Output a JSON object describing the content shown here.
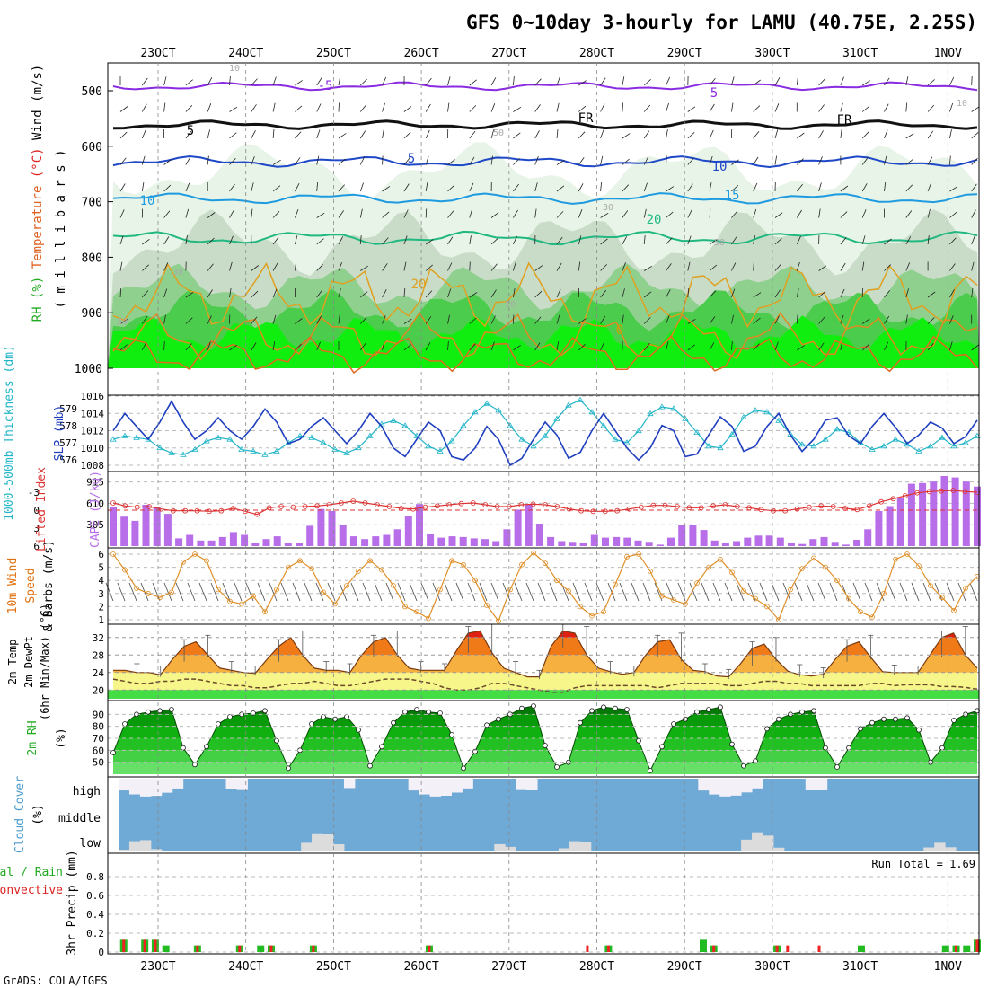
{
  "title": "GFS 0~10day 3-hourly for LAMU (40.75E, 2.25S)",
  "credit": "GrADS: COLA/IGES",
  "date_labels": [
    "23OCT",
    "24OCT",
    "25OCT",
    "26OCT",
    "27OCT",
    "28OCT",
    "29OCT",
    "30OCT",
    "31OCT",
    "1NOV"
  ],
  "panels": {
    "upper": {
      "ylabel_parts": [
        {
          "text": "RH (%)",
          "color": "#22aa22"
        },
        {
          "text": "Temperature",
          "color": "#e06020"
        },
        {
          "text": "(°C)",
          "color": "#dd2222"
        },
        {
          "text": "Wind (m/s)",
          "color": "#000000"
        }
      ],
      "ylabel2": "( m i l l i b a r s )",
      "yticks": [
        500,
        600,
        700,
        800,
        900,
        1000
      ],
      "contour_labels": [
        "-5",
        "5",
        "FR",
        "FR",
        "5",
        "5",
        "10",
        "10",
        "15",
        "20",
        "20",
        "0",
        "30",
        "10",
        "50",
        "10",
        "30",
        "50",
        "10",
        "30"
      ]
    },
    "thickness": {
      "ylabel_left": "1000-500mb Thickness (dm)",
      "ylabel_right": "SLP (mb)",
      "yticks_left": [
        576,
        577,
        578,
        579
      ],
      "yticks_right": [
        1008,
        1010,
        1012,
        1014,
        1016
      ],
      "colors": {
        "slp": "#1f3fbf",
        "thickness": "#22b5c8"
      }
    },
    "cape": {
      "ylabel_left": "Lifted Index",
      "ylabel_right": "CAPE (J/kg)",
      "yticks_left": [
        "-3",
        "0",
        "3",
        "6"
      ],
      "yticks_right": [
        "915",
        "610",
        "305"
      ],
      "colors": {
        "bar": "#b76ee8",
        "li": "#dd3333"
      }
    },
    "wind": {
      "ylabel_parts": [
        {
          "text": "10m Wind",
          "color": "#e07010"
        },
        {
          "text": "Speed",
          "color": "#e07010"
        },
        {
          "text": "& Barbs (m/s)",
          "color": "#000000"
        }
      ],
      "yticks": [
        1,
        2,
        3,
        4,
        5,
        6
      ],
      "color": "#e0902a"
    },
    "temp": {
      "ylabel_lines": [
        "2m Temp",
        "2m DewPt",
        "(6hr Min/Max) (°C)"
      ],
      "yticks": [
        20,
        24,
        28,
        32
      ]
    },
    "rh": {
      "ylabel_lines": [
        "2m RH",
        "(%)"
      ],
      "yticks": [
        50,
        60,
        70,
        80,
        90
      ]
    },
    "cloud": {
      "ylabel_lines": [
        "Cloud Cover",
        "(%)"
      ],
      "levels": [
        "high",
        "middle",
        "low"
      ],
      "colors": {
        "sky": "#6fa9d6",
        "cloud": "#dcdcdc",
        "bright": "#f4f0f8"
      }
    },
    "precip": {
      "ylabel_left_lines": [
        {
          "text": "Total / Rain",
          "color": "#22aa22"
        },
        {
          "text": "Convective",
          "color": "#dd2222"
        }
      ],
      "ylabel": "3hr Precip (mm)",
      "yticks": [
        "0",
        "0.2",
        "0.4",
        "0.6",
        "0.8"
      ],
      "run_total": "Run Total = 1.69"
    }
  },
  "chart_data": [
    {
      "type": "line",
      "title": "1000-500mb Thickness / SLP",
      "series": [
        {
          "name": "SLP (mb)",
          "values": [
            1012,
            1014,
            1012.5,
            1011,
            1013,
            1015.4,
            1013,
            1011,
            1012,
            1013.5,
            1012,
            1011,
            1012.5,
            1014.5,
            1013,
            1010.5,
            1011,
            1012.5,
            1013.5,
            1012,
            1010.5,
            1012,
            1014,
            1012.5,
            1010,
            1009,
            1011,
            1013,
            1012,
            1009,
            1008.6,
            1010,
            1012.5,
            1011,
            1008,
            1008.8,
            1011,
            1013,
            1011.5,
            1008.8,
            1009.5,
            1012,
            1014,
            1012,
            1010,
            1008.6,
            1010,
            1012.6,
            1012,
            1009,
            1009.3,
            1011.5,
            1013.6,
            1012.5,
            1009.6,
            1010.2,
            1012.5,
            1014,
            1011.5,
            1009.6,
            1011,
            1013.2,
            1013.5,
            1011.4,
            1010.5,
            1012.5,
            1014,
            1012.4,
            1010.5,
            1011.5,
            1013,
            1012.3,
            1010.5,
            1011.3,
            1013.2
          ]
        },
        {
          "name": "Thickness (dm)",
          "values": [
            577.2,
            577.4,
            577.3,
            577.2,
            576.7,
            576.4,
            576.3,
            576.6,
            577.1,
            577.3,
            577.2,
            576.6,
            576.5,
            576.3,
            576.5,
            577.0,
            577.4,
            577.3,
            577.0,
            576.6,
            576.4,
            576.7,
            577.4,
            578.1,
            578.3,
            578.0,
            577.4,
            576.8,
            576.5,
            577.1,
            578.0,
            578.8,
            579.3,
            578.9,
            578.0,
            577.2,
            576.8,
            577.4,
            578.4,
            579.2,
            579.5,
            578.8,
            578.0,
            577.2,
            577.0,
            577.7,
            578.7,
            579.1,
            579.0,
            578.4,
            577.6,
            576.8,
            576.7,
            577.5,
            578.5,
            578.9,
            578.8,
            578.3,
            577.5,
            576.9,
            576.8,
            577.2,
            577.8,
            577.6,
            577.0,
            576.6,
            576.8,
            577.2,
            576.9,
            576.5,
            576.8,
            577.3,
            576.8,
            577.0,
            577.4
          ]
        }
      ]
    },
    {
      "type": "bar",
      "title": "CAPE (J/kg) / Lifted Index",
      "series": [
        {
          "name": "CAPE (J/kg)",
          "values": [
            560,
            420,
            360,
            590,
            560,
            460,
            110,
            160,
            80,
            80,
            130,
            200,
            160,
            40,
            100,
            140,
            40,
            50,
            290,
            530,
            500,
            300,
            140,
            100,
            140,
            160,
            240,
            430,
            600,
            180,
            120,
            140,
            130,
            110,
            100,
            70,
            240,
            520,
            600,
            320,
            130,
            70,
            60,
            40,
            160,
            120,
            130,
            120,
            80,
            60,
            20,
            120,
            300,
            300,
            230,
            80,
            50,
            70,
            120,
            150,
            150,
            120,
            50,
            30,
            100,
            130,
            60,
            20,
            90,
            240,
            500,
            570,
            680,
            890,
            900,
            920,
            1000,
            980,
            920,
            850
          ]
        },
        {
          "name": "Lifted Index",
          "values": [
            -1.2,
            -0.7,
            -0.5,
            -0.6,
            -0.2,
            0.1,
            0.1,
            0.1,
            0.2,
            0.1,
            -0.3,
            0.2,
            0.7,
            -0.4,
            -0.6,
            -0.5,
            -0.6,
            -0.7,
            -0.9,
            -1.2,
            -1.5,
            -1.2,
            -0.9,
            -0.6,
            -0.3,
            -0.2,
            -0.5,
            -0.7,
            -0.9,
            -1.1,
            -1.2,
            -0.9,
            -0.6,
            -0.6,
            -0.9,
            -1.0,
            -0.9,
            -0.6,
            -0.2,
            0.1,
            0.2,
            0.2,
            0.1,
            -0.2,
            -0.5,
            -0.8,
            -0.8,
            -0.6,
            -0.4,
            -0.4,
            -0.7,
            -0.9,
            -0.6,
            -0.4,
            -0.1,
            0.1,
            0.1,
            -0.2,
            -0.5,
            -0.7,
            -0.6,
            -0.3,
            -0.1,
            -0.7,
            -1.4,
            -1.9,
            -2.4,
            -2.9,
            -3.1,
            -3.2,
            -3.3,
            -3.1,
            -3.0
          ]
        }
      ]
    },
    {
      "type": "line",
      "title": "10m Wind Speed",
      "series": [
        {
          "name": "10m Wind Speed (m/s)",
          "values": [
            6,
            4.8,
            3.4,
            3.0,
            2.7,
            3.1,
            5.4,
            6.0,
            5.5,
            3.3,
            2.4,
            2.2,
            2.8,
            1.6,
            3.3,
            5.0,
            5.5,
            4.9,
            3.1,
            2.2,
            3.6,
            4.7,
            5.5,
            4.8,
            3.6,
            2.0,
            1.6,
            1.1,
            3.3,
            5.5,
            5.2,
            4.0,
            2.1,
            0.9,
            3.3,
            5.2,
            6.1,
            5.3,
            4.0,
            3.2,
            2.0,
            1.3,
            1.6,
            3.7,
            5.8,
            6.0,
            4.7,
            2.8,
            2.5,
            2.2,
            3.8,
            5.0,
            5.6,
            4.6,
            3.2,
            2.6,
            2.0,
            1.0,
            3.3,
            4.9,
            5.7,
            5.0,
            4.0,
            2.6,
            1.6,
            1.2,
            3.0,
            5.6,
            6.0,
            5.1,
            3.6,
            2.7,
            1.7,
            3.4,
            4.3
          ]
        }
      ]
    },
    {
      "type": "area",
      "title": "2m Temp / 2m DewPt",
      "series": [
        {
          "name": "2m Temp (°C)",
          "values": [
            24.5,
            24.5,
            24,
            24,
            23.5,
            27,
            30,
            31,
            28,
            25,
            24.5,
            24,
            23.8,
            27,
            30,
            32,
            28,
            25,
            24.5,
            24.5,
            24,
            28,
            31,
            32,
            28,
            25,
            24.5,
            24.5,
            24.5,
            29,
            33,
            33.5,
            28.5,
            25,
            24,
            23,
            23,
            30,
            33.5,
            33,
            28,
            25,
            24.2,
            23.6,
            24,
            28,
            31,
            31.5,
            27,
            24.5,
            24.2,
            23.2,
            23,
            26,
            29.5,
            30.5,
            27,
            24.3,
            23.5,
            23.2,
            23.6,
            27,
            30,
            31,
            27.5,
            24.2,
            24,
            24,
            24,
            28,
            32,
            33,
            28,
            25
          ]
        },
        {
          "name": "2m DewPt (°C)",
          "values": [
            22.5,
            22,
            21.5,
            21.5,
            22,
            22,
            22.5,
            22.5,
            22,
            21.5,
            21,
            21,
            20.5,
            20.5,
            21,
            21.5,
            21.5,
            22,
            21.5,
            21,
            21,
            21.5,
            22,
            22.5,
            22.5,
            22.5,
            22,
            21.5,
            20.5,
            20,
            20,
            20.5,
            21.5,
            21.5,
            21,
            20.5,
            20,
            19.5,
            19.5,
            20.5,
            21,
            21,
            21,
            21,
            21,
            21,
            20.5,
            21,
            21.5,
            21.5,
            21.5,
            21.5,
            21,
            21,
            21.5,
            22,
            22,
            21.5,
            21.5,
            21,
            21,
            21,
            21,
            21,
            21.5,
            21.5,
            21,
            21.2,
            21.2,
            21.2,
            20.8,
            20.8,
            20.6,
            20.2
          ]
        }
      ]
    },
    {
      "type": "area",
      "title": "2m RH",
      "series": [
        {
          "name": "2m RH (%)",
          "values": [
            58,
            82,
            90,
            92,
            93,
            94,
            62,
            48,
            63,
            82,
            88,
            90,
            91,
            93,
            68,
            45,
            60,
            82,
            88,
            86,
            88,
            77,
            47,
            63,
            83,
            92,
            94,
            92,
            91,
            73,
            45,
            59,
            81,
            86,
            90,
            95,
            97,
            64,
            46,
            50,
            83,
            93,
            96,
            95,
            94,
            68,
            43,
            63,
            82,
            86,
            92,
            94,
            96,
            65,
            47,
            51,
            78,
            86,
            90,
            92,
            93,
            62,
            46,
            62,
            78,
            83,
            86,
            86,
            87,
            77,
            50,
            62,
            85,
            90,
            93
          ]
        }
      ]
    },
    {
      "type": "bar",
      "title": "3hr Precip",
      "series": [
        {
          "name": "Total / Rain (mm)",
          "values": [
            0,
            0.13,
            0,
            0.13,
            0.13,
            0.07,
            0,
            0,
            0.07,
            0,
            0,
            0,
            0.07,
            0,
            0.07,
            0.07,
            0,
            0,
            0,
            0.07,
            0,
            0,
            0,
            0,
            0,
            0,
            0,
            0,
            0,
            0,
            0.07,
            0,
            0,
            0,
            0,
            0,
            0,
            0,
            0,
            0,
            0,
            0,
            0,
            0,
            0,
            0,
            0,
            0.07,
            0,
            0,
            0,
            0,
            0,
            0,
            0,
            0,
            0.13,
            0.07,
            0,
            0,
            0,
            0,
            0,
            0.07,
            0,
            0,
            0,
            0,
            0,
            0,
            0,
            0.07,
            0,
            0,
            0,
            0,
            0,
            0,
            0,
            0.07,
            0.07,
            0.07,
            0.13
          ]
        },
        {
          "name": "Convective (mm)",
          "values": [
            0,
            0.13,
            0,
            0.13,
            0.13,
            0,
            0,
            0,
            0.07,
            0,
            0,
            0,
            0.07,
            0,
            0,
            0.07,
            0,
            0,
            0,
            0.07,
            0,
            0,
            0,
            0,
            0,
            0,
            0,
            0,
            0,
            0,
            0.07,
            0,
            0,
            0,
            0,
            0,
            0,
            0,
            0,
            0,
            0,
            0,
            0,
            0,
            0,
            0.07,
            0,
            0.07,
            0,
            0,
            0,
            0,
            0,
            0,
            0,
            0,
            0,
            0.07,
            0,
            0,
            0,
            0,
            0,
            0.07,
            0.07,
            0,
            0,
            0.07,
            0,
            0,
            0,
            0,
            0,
            0,
            0,
            0,
            0,
            0,
            0,
            0,
            0.07,
            0,
            0.13
          ]
        }
      ]
    }
  ]
}
